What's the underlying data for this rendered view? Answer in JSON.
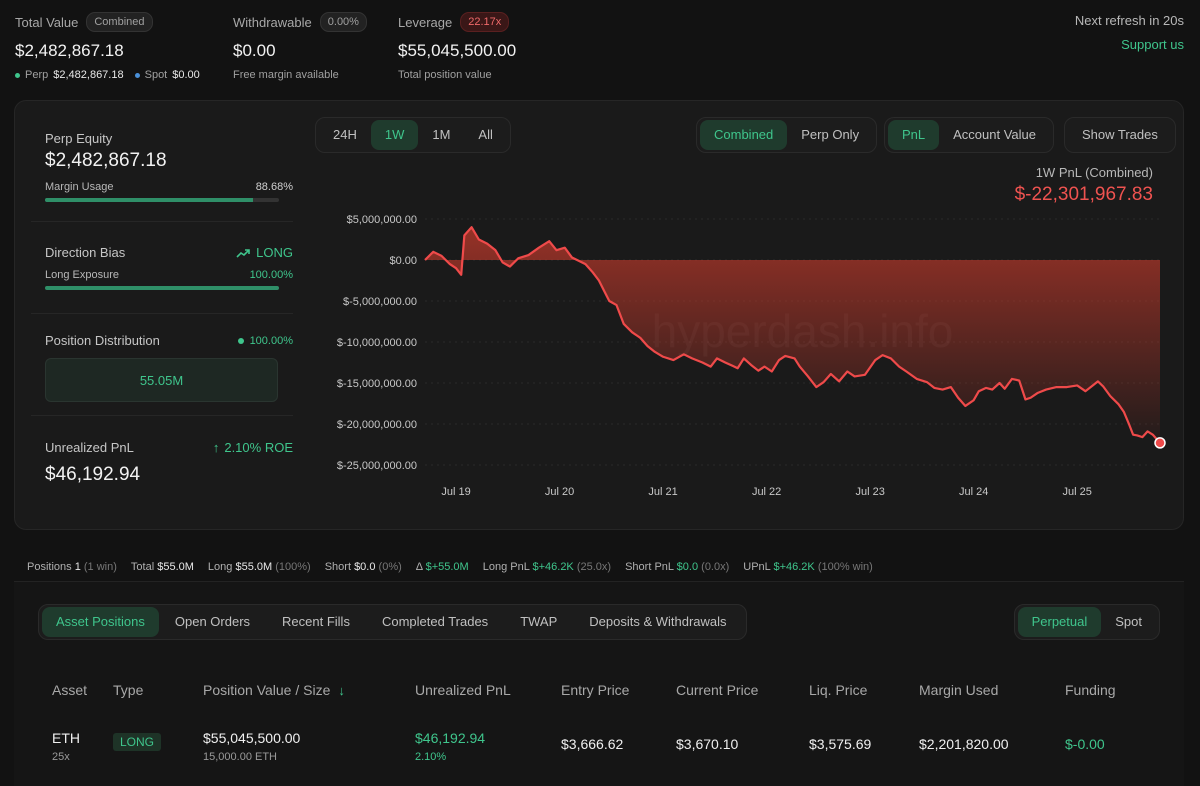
{
  "summary": {
    "total_value": {
      "label": "Total Value",
      "badge": "Combined",
      "value": "$2,482,867.18",
      "perp_label": "Perp",
      "perp_value": "$2,482,867.18",
      "spot_label": "Spot",
      "spot_value": "$0.00"
    },
    "withdrawable": {
      "label": "Withdrawable",
      "badge": "0.00%",
      "value": "$0.00",
      "sub": "Free margin available"
    },
    "leverage": {
      "label": "Leverage",
      "badge": "22.17x",
      "value": "$55,045,500.00",
      "sub": "Total position value"
    },
    "refresh": "Next refresh in 20s",
    "support": "Support us"
  },
  "left_panel": {
    "perp_equity_label": "Perp Equity",
    "perp_equity_value": "$2,482,867.18",
    "margin_usage_label": "Margin Usage",
    "margin_usage_value": "88.68%",
    "margin_usage_fraction": 0.8868,
    "direction_bias_label": "Direction Bias",
    "direction_bias_value": "LONG",
    "long_exposure_label": "Long Exposure",
    "long_exposure_value": "100.00%",
    "long_exposure_fraction": 1.0,
    "position_distribution_label": "Position Distribution",
    "position_distribution_value": "100.00%",
    "distribution_box": "55.05M",
    "unrealized_pnl_label": "Unrealized PnL",
    "roe": "2.10% ROE",
    "unrealized_pnl_value": "$46,192.94"
  },
  "time_tabs": [
    "24H",
    "1W",
    "1M",
    "All"
  ],
  "time_active": "1W",
  "mode_tabs": [
    "Combined",
    "Perp Only"
  ],
  "metric_tabs": [
    "PnL",
    "Account Value"
  ],
  "show_trades": "Show Trades",
  "pnl_header": {
    "title": "1W PnL (Combined)",
    "value": "$-22,301,967.83"
  },
  "watermark": "hyperdash.info",
  "chart_data": {
    "type": "area",
    "ylim": [
      -25000000,
      5000000
    ],
    "yticks": [
      "$5,000,000.00",
      "$0.00",
      "$-5,000,000.00",
      "$-10,000,000.00",
      "$-15,000,000.00",
      "$-20,000,000.00",
      "$-25,000,000.00"
    ],
    "ytick_values": [
      5000000,
      0,
      -5000000,
      -10000000,
      -15000000,
      -20000000,
      -25000000
    ],
    "xticks": [
      "Jul 19",
      "Jul 20",
      "Jul 21",
      "Jul 22",
      "Jul 23",
      "Jul 24",
      "Jul 25"
    ],
    "x_start_day": 18.7,
    "x_end_day": 25.8,
    "points": [
      [
        18.7,
        0
      ],
      [
        18.78,
        1000000
      ],
      [
        18.86,
        500000
      ],
      [
        18.94,
        -500000
      ],
      [
        19.0,
        -1000000
      ],
      [
        19.05,
        -1800000
      ],
      [
        19.08,
        3000000
      ],
      [
        19.15,
        4000000
      ],
      [
        19.22,
        2500000
      ],
      [
        19.3,
        2000000
      ],
      [
        19.38,
        1200000
      ],
      [
        19.45,
        -300000
      ],
      [
        19.52,
        -800000
      ],
      [
        19.6,
        200000
      ],
      [
        19.7,
        600000
      ],
      [
        19.8,
        1500000
      ],
      [
        19.9,
        2300000
      ],
      [
        19.97,
        1200000
      ],
      [
        20.05,
        1500000
      ],
      [
        20.12,
        300000
      ],
      [
        20.25,
        -500000
      ],
      [
        20.32,
        -1500000
      ],
      [
        20.38,
        -2500000
      ],
      [
        20.42,
        -3500000
      ],
      [
        20.48,
        -5000000
      ],
      [
        20.55,
        -5500000
      ],
      [
        20.62,
        -7800000
      ],
      [
        20.7,
        -8800000
      ],
      [
        20.78,
        -9500000
      ],
      [
        20.85,
        -10500000
      ],
      [
        20.92,
        -11200000
      ],
      [
        21.0,
        -11800000
      ],
      [
        21.1,
        -12200000
      ],
      [
        21.2,
        -11500000
      ],
      [
        21.28,
        -12000000
      ],
      [
        21.38,
        -12500000
      ],
      [
        21.46,
        -13000000
      ],
      [
        21.52,
        -12000000
      ],
      [
        21.6,
        -12500000
      ],
      [
        21.67,
        -12900000
      ],
      [
        21.72,
        -13200000
      ],
      [
        21.78,
        -12000000
      ],
      [
        21.85,
        -12800000
      ],
      [
        21.92,
        -13500000
      ],
      [
        21.98,
        -13000000
      ],
      [
        22.05,
        -13600000
      ],
      [
        22.12,
        -12200000
      ],
      [
        22.18,
        -11700000
      ],
      [
        22.27,
        -12000000
      ],
      [
        22.32,
        -13000000
      ],
      [
        22.4,
        -14200000
      ],
      [
        22.48,
        -15500000
      ],
      [
        22.55,
        -14900000
      ],
      [
        22.62,
        -13900000
      ],
      [
        22.7,
        -14800000
      ],
      [
        22.78,
        -13600000
      ],
      [
        22.85,
        -14200000
      ],
      [
        22.95,
        -14000000
      ],
      [
        23.05,
        -12200000
      ],
      [
        23.12,
        -11600000
      ],
      [
        23.2,
        -12000000
      ],
      [
        23.28,
        -13000000
      ],
      [
        23.35,
        -13600000
      ],
      [
        23.45,
        -14500000
      ],
      [
        23.55,
        -14900000
      ],
      [
        23.62,
        -15600000
      ],
      [
        23.7,
        -15800000
      ],
      [
        23.78,
        -15500000
      ],
      [
        23.85,
        -16800000
      ],
      [
        23.92,
        -17800000
      ],
      [
        24.0,
        -17100000
      ],
      [
        24.05,
        -16000000
      ],
      [
        24.12,
        -15600000
      ],
      [
        24.18,
        -15800000
      ],
      [
        24.25,
        -15000000
      ],
      [
        24.3,
        -15700000
      ],
      [
        24.37,
        -14500000
      ],
      [
        24.44,
        -14700000
      ],
      [
        24.5,
        -17000000
      ],
      [
        24.55,
        -16800000
      ],
      [
        24.62,
        -16200000
      ],
      [
        24.7,
        -15800000
      ],
      [
        24.8,
        -15500000
      ],
      [
        24.9,
        -15500000
      ],
      [
        25.0,
        -15300000
      ],
      [
        25.08,
        -16000000
      ],
      [
        25.15,
        -15300000
      ],
      [
        25.2,
        -14800000
      ],
      [
        25.25,
        -15400000
      ],
      [
        25.32,
        -16600000
      ],
      [
        25.4,
        -17600000
      ],
      [
        25.45,
        -18500000
      ],
      [
        25.5,
        -20000000
      ],
      [
        25.54,
        -21300000
      ],
      [
        25.58,
        -21400000
      ],
      [
        25.63,
        -21600000
      ],
      [
        25.68,
        -20900000
      ],
      [
        25.73,
        -21300000
      ],
      [
        25.8,
        -22301967.83
      ]
    ]
  },
  "stats_bar": {
    "positions_label": "Positions",
    "positions_value": "1",
    "positions_note": "(1 win)",
    "total_label": "Total",
    "total_value": "$55.0M",
    "long_label": "Long",
    "long_value": "$55.0M",
    "long_note": "(100%)",
    "short_label": "Short",
    "short_value": "$0.0",
    "short_note": "(0%)",
    "delta_label": "Δ",
    "delta_value": "$+55.0M",
    "long_pnl_label": "Long PnL",
    "long_pnl_value": "$+46.2K",
    "long_pnl_note": "(25.0x)",
    "short_pnl_label": "Short PnL",
    "short_pnl_value": "$0.0",
    "short_pnl_note": "(0.0x)",
    "upnl_label": "UPnL",
    "upnl_value": "$+46.2K",
    "upnl_note": "(100% win)"
  },
  "bottom_tabs": [
    "Asset Positions",
    "Open Orders",
    "Recent Fills",
    "Completed Trades",
    "TWAP",
    "Deposits & Withdrawals"
  ],
  "bottom_active": "Asset Positions",
  "market_tabs": [
    "Perpetual",
    "Spot"
  ],
  "market_active": "Perpetual",
  "table": {
    "headers": [
      "Asset",
      "Type",
      "Position Value / Size",
      "Unrealized PnL",
      "Entry Price",
      "Current Price",
      "Liq. Price",
      "Margin Used",
      "Funding"
    ],
    "row": {
      "asset": "ETH",
      "leverage": "25x",
      "type": "LONG",
      "position_value": "$55,045,500.00",
      "size": "15,000.00 ETH",
      "upnl": "$46,192.94",
      "upnl_pct": "2.10%",
      "entry": "$3,666.62",
      "current": "$3,670.10",
      "liq": "$3,575.69",
      "margin": "$2,201,820.00",
      "funding": "$-0.00"
    }
  }
}
